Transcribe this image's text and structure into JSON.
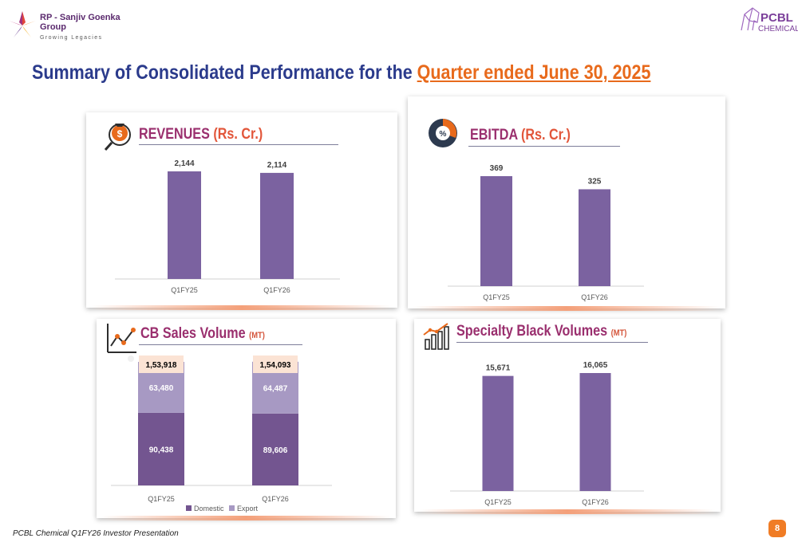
{
  "header": {
    "group_name": "RP - Sanjiv Goenka Group",
    "group_tagline": "Growing Legacies",
    "company_logo_main": "PCBL",
    "company_logo_sub": "CHEMICAL",
    "title_main": "Summary of Consolidated Performance for the ",
    "title_highlight": "Quarter ended June 30, 2025"
  },
  "colors": {
    "bar": "#7b62a0",
    "bar_domestic": "#735590",
    "bar_export": "#a799c3",
    "accent": "#e86a1c",
    "title": "#2b3b8c"
  },
  "cards": {
    "revenues": {
      "title_main": "REVENUES",
      "title_unit": "(Rs. Cr.)",
      "icon": "money-bag-magnifier-icon"
    },
    "ebitda": {
      "title_main": "EBITDA",
      "title_unit": "(Rs. Cr.)",
      "icon": "pie-chart-icon"
    },
    "cb_sales": {
      "title_main": "CB Sales Volume",
      "title_unit": "(MT)",
      "icon": "line-chart-icon"
    },
    "specialty": {
      "title_main": "Specialty Black Volumes",
      "title_unit": "(MT)",
      "icon": "bar-growth-icon"
    }
  },
  "chart_data": [
    {
      "type": "bar",
      "title": "REVENUES (Rs. Cr.)",
      "categories": [
        "Q1FY25",
        "Q1FY26"
      ],
      "values": [
        2144,
        2114
      ],
      "labels": [
        "2,144",
        "2,114"
      ]
    },
    {
      "type": "bar",
      "title": "EBITDA (Rs. Cr.)",
      "categories": [
        "Q1FY25",
        "Q1FY26"
      ],
      "values": [
        369,
        325
      ],
      "labels": [
        "369",
        "325"
      ]
    },
    {
      "type": "bar",
      "stacked": true,
      "title": "CB Sales Volume (MT)",
      "categories": [
        "Q1FY25",
        "Q1FY26"
      ],
      "series": [
        {
          "name": "Domestic",
          "values": [
            90438,
            89606
          ],
          "labels": [
            "90,438",
            "89,606"
          ]
        },
        {
          "name": "Export",
          "values": [
            63480,
            64487
          ],
          "labels": [
            "63,480",
            "64,487"
          ]
        }
      ],
      "totals": [
        153918,
        154093
      ],
      "total_labels": [
        "1,53,918",
        "1,54,093"
      ],
      "legend": "bottom"
    },
    {
      "type": "bar",
      "title": "Specialty Black Volumes (MT)",
      "categories": [
        "Q1FY25",
        "Q1FY26"
      ],
      "values": [
        15671,
        16065
      ],
      "labels": [
        "15,671",
        "16,065"
      ]
    }
  ],
  "footer": {
    "text": "PCBL Chemical Q1FY26 Investor Presentation",
    "page": "8"
  }
}
